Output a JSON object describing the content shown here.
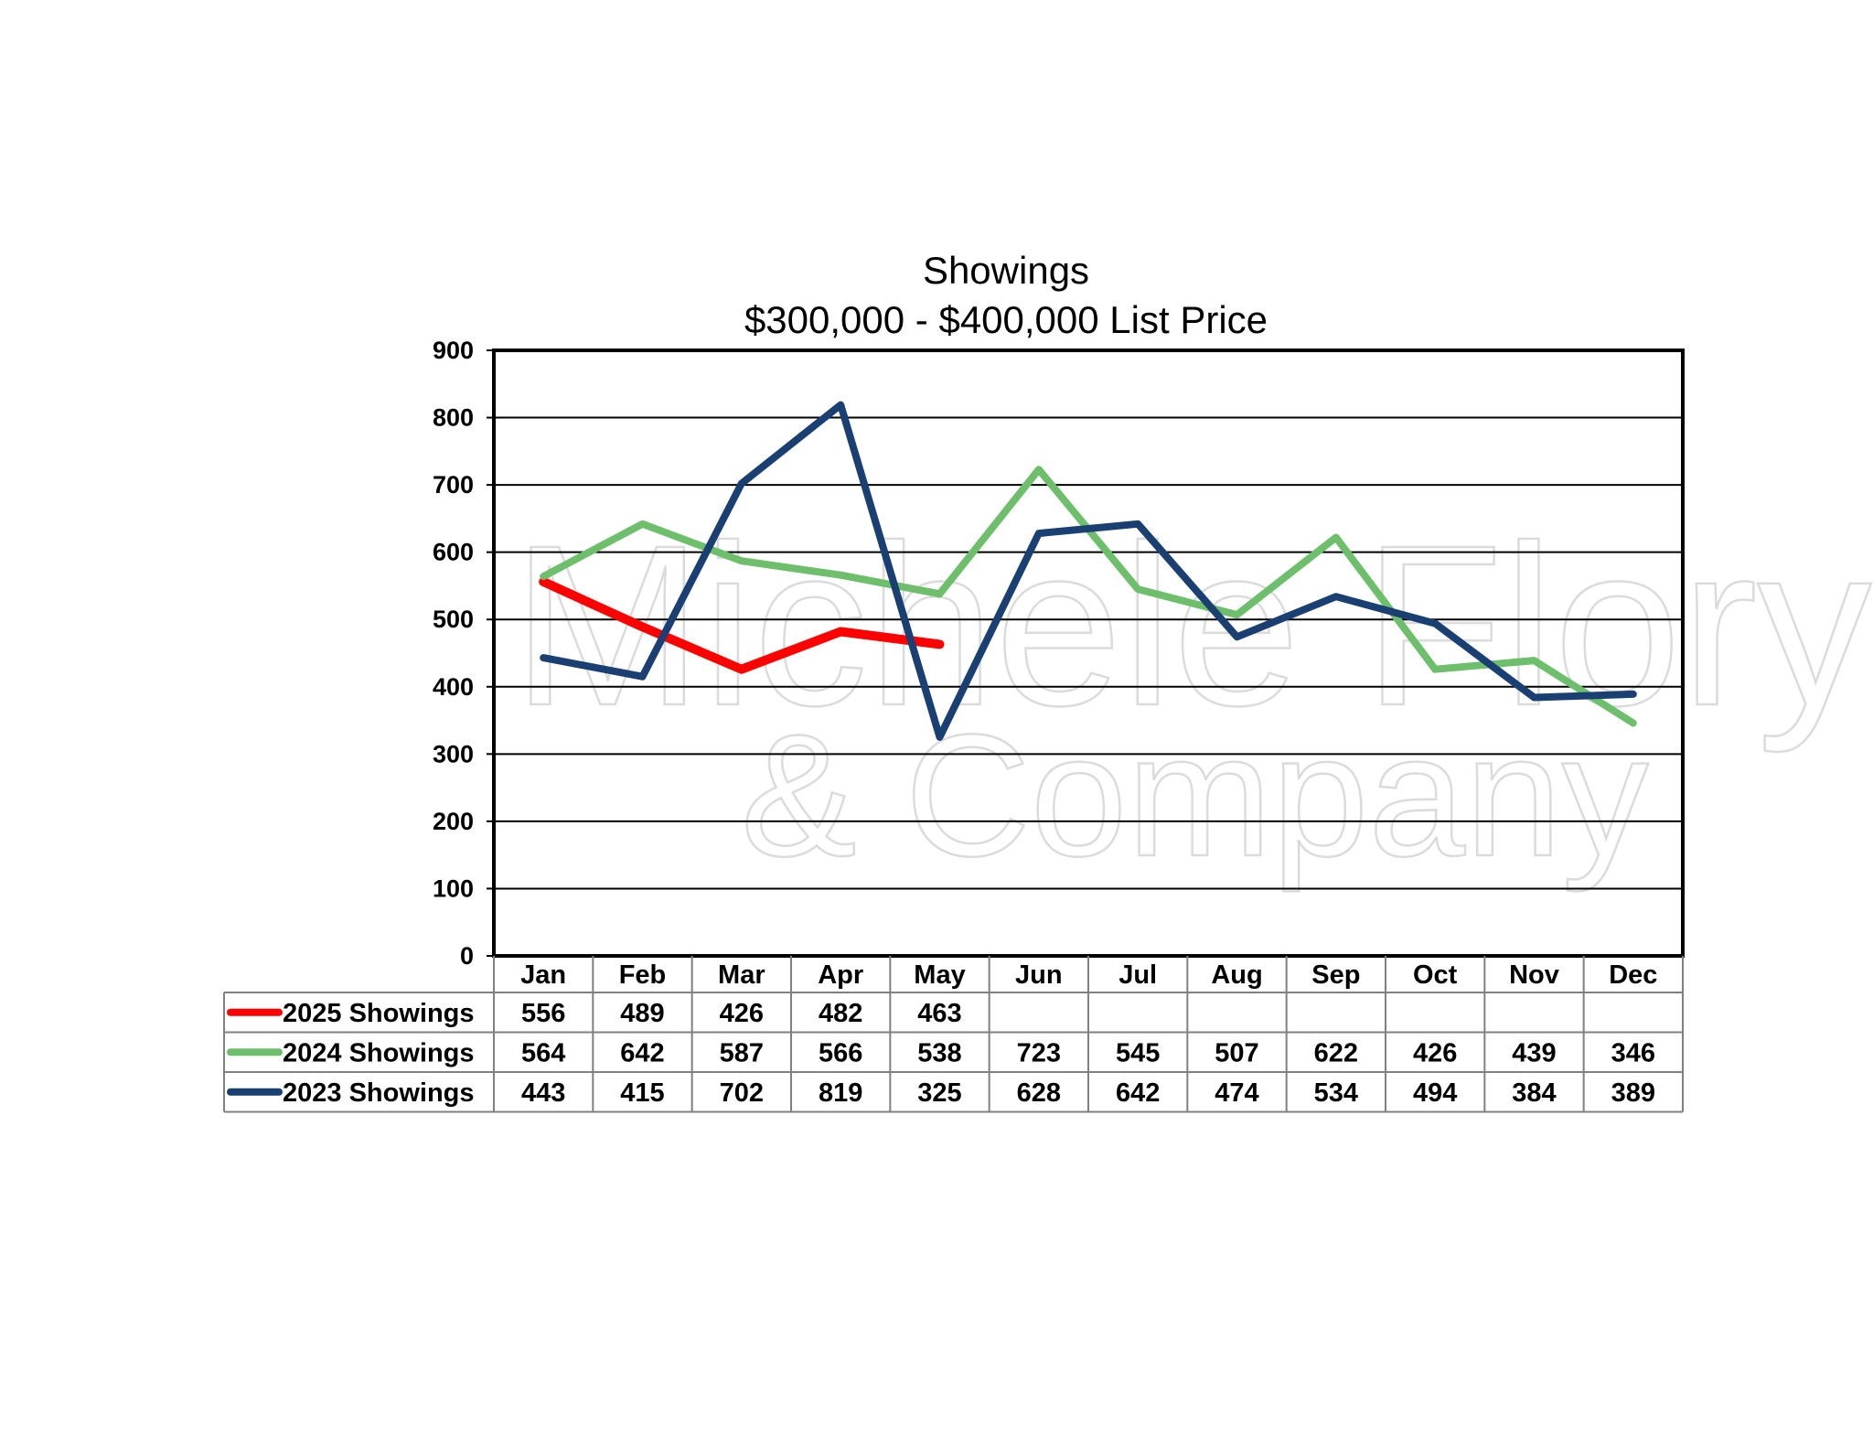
{
  "chart_data": {
    "type": "line",
    "title": "Showings",
    "subtitle": "$300,000 - $400,000 List Price",
    "categories": [
      "Jan",
      "Feb",
      "Mar",
      "Apr",
      "May",
      "Jun",
      "Jul",
      "Aug",
      "Sep",
      "Oct",
      "Nov",
      "Dec"
    ],
    "ylim": [
      0,
      900
    ],
    "yticks": [
      0,
      100,
      200,
      300,
      400,
      500,
      600,
      700,
      800,
      900
    ],
    "grid": true,
    "legend": "data-table-left",
    "series": [
      {
        "name": "2025 Showings",
        "color": "#ff0000",
        "values": [
          556,
          489,
          426,
          482,
          463,
          null,
          null,
          null,
          null,
          null,
          null,
          null
        ]
      },
      {
        "name": "2024 Showings",
        "color": "#6dbf6b",
        "values": [
          564,
          642,
          587,
          566,
          538,
          723,
          545,
          507,
          622,
          426,
          439,
          346
        ]
      },
      {
        "name": "2023 Showings",
        "color": "#1a3f73",
        "values": [
          443,
          415,
          702,
          819,
          325,
          628,
          642,
          474,
          534,
          494,
          384,
          389
        ]
      }
    ]
  },
  "watermark": {
    "line1": "Michele Flory",
    "line2": "& Company"
  }
}
